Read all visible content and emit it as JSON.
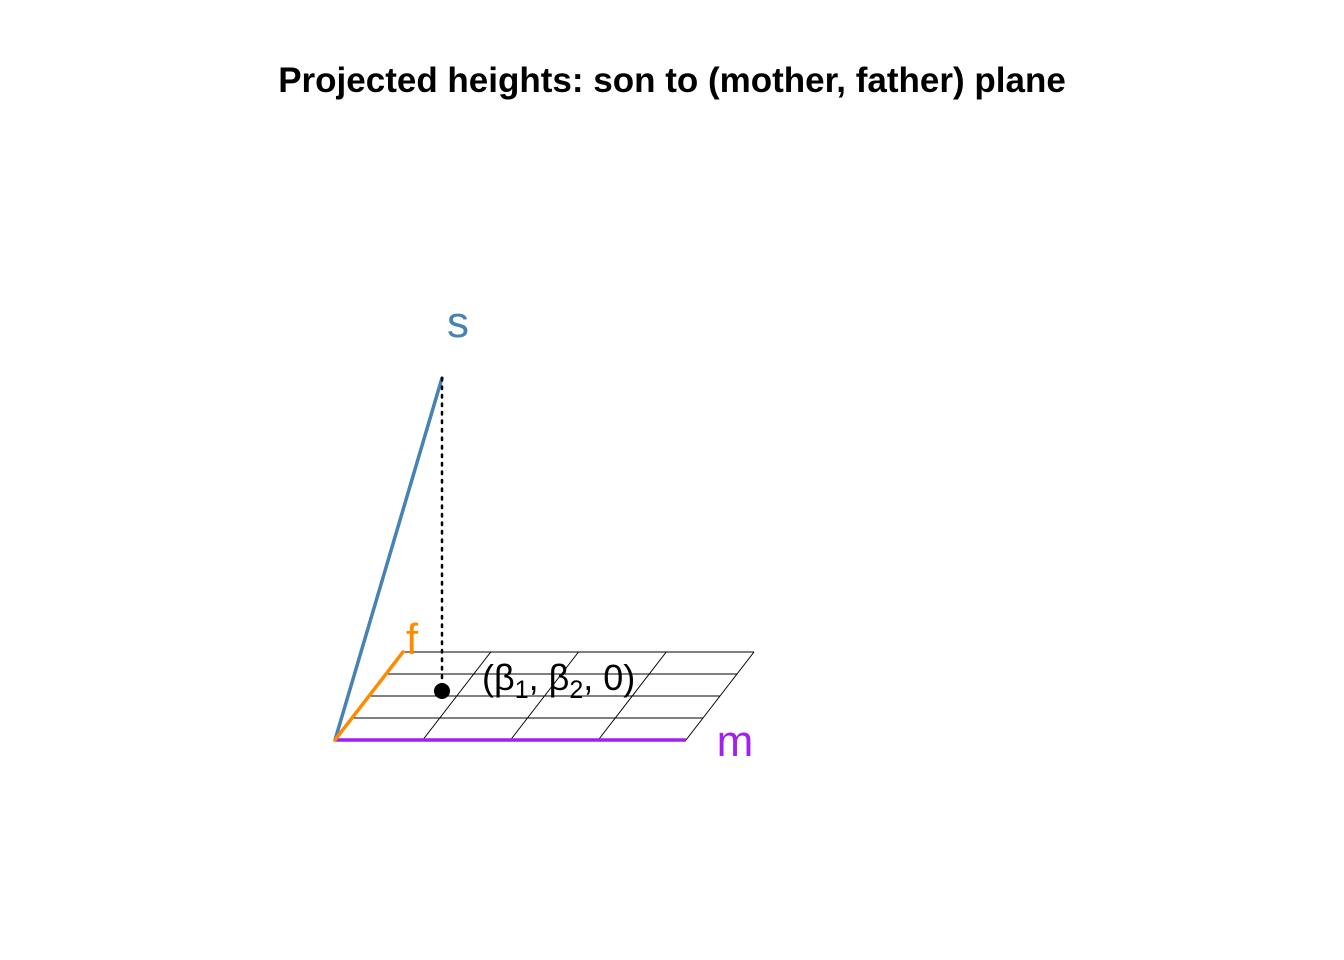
{
  "title": "Projected heights: son to (mother, father) plane",
  "axes": {
    "s": {
      "label": "s",
      "color": "#4682B4"
    },
    "f": {
      "label": "f",
      "color": "#FF8C00"
    },
    "m": {
      "label": "m",
      "color": "#A020F0"
    }
  },
  "point": {
    "label_open": "(",
    "label_beta": "β",
    "label_sub1": "1",
    "label_sep1": ", ",
    "label_sub2": "2",
    "label_close": ", 0)",
    "color": "#000000"
  },
  "grid": {
    "m_divisions": 4,
    "f_divisions": 4,
    "color": "#000000"
  },
  "projection_line": {
    "style": "dotted",
    "color": "#000000"
  }
}
